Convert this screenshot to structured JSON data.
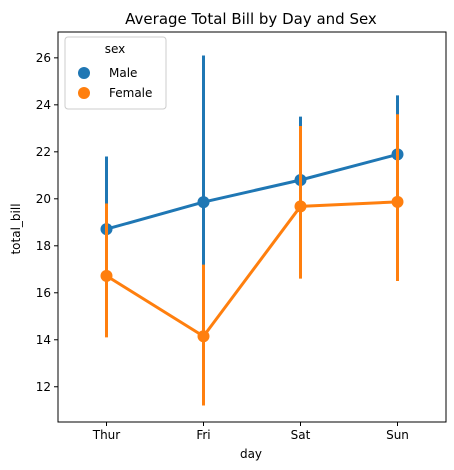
{
  "chart_data": {
    "type": "line",
    "title": "Average Total Bill by Day and Sex",
    "xlabel": "day",
    "ylabel": "total_bill",
    "categories": [
      "Thur",
      "Fri",
      "Sat",
      "Sun"
    ],
    "ylim": [
      10.5,
      27.1
    ],
    "yticks": [
      12,
      14,
      16,
      18,
      20,
      22,
      24,
      26
    ],
    "legend": {
      "title": "sex",
      "placement": "top-left"
    },
    "grid": false,
    "series": [
      {
        "name": "Male",
        "color": "#1f77b4",
        "values": [
          18.71,
          19.86,
          20.8,
          21.89
        ],
        "ci_low": [
          16.2,
          13.1,
          18.4,
          19.8
        ],
        "ci_high": [
          21.8,
          26.1,
          23.5,
          24.4
        ]
      },
      {
        "name": "Female",
        "color": "#ff7f0e",
        "values": [
          16.72,
          14.15,
          19.68,
          19.87
        ],
        "ci_low": [
          14.1,
          11.2,
          16.6,
          16.5
        ],
        "ci_high": [
          19.8,
          17.2,
          23.1,
          23.6
        ]
      }
    ]
  }
}
